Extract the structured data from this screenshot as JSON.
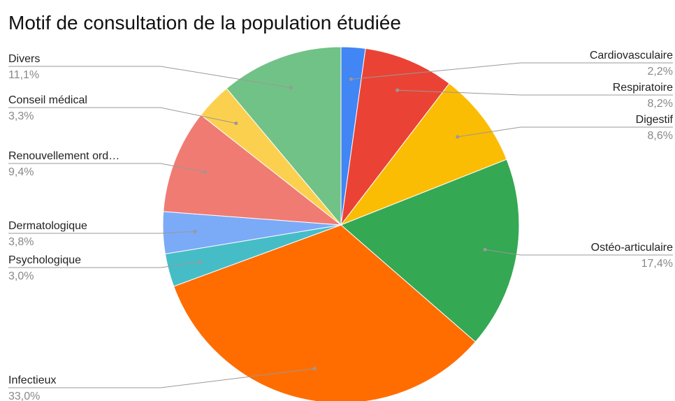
{
  "chart_data": {
    "type": "pie",
    "title": "Motif de consultation de la population étudiée",
    "categories": [
      "Cardiovasculaire",
      "Respiratoire",
      "Digestif",
      "Ostéo-articulaire",
      "Infectieux",
      "Psychologique",
      "Dermatologique",
      "Renouvellement ord…",
      "Conseil médical",
      "Divers"
    ],
    "values": [
      2.2,
      8.2,
      8.6,
      17.4,
      33.0,
      3.0,
      3.8,
      9.4,
      3.3,
      11.1
    ],
    "value_labels": [
      "2,2%",
      "8,2%",
      "8,6%",
      "17,4%",
      "33,0%",
      "3,0%",
      "3,8%",
      "9,4%",
      "3,3%",
      "11,1%"
    ],
    "colors": [
      "#4285f4",
      "#ea4335",
      "#fbbc04",
      "#34a853",
      "#ff6d01",
      "#46bdc6",
      "#7baaf7",
      "#f07b72",
      "#fcd04f",
      "#71c287"
    ]
  }
}
